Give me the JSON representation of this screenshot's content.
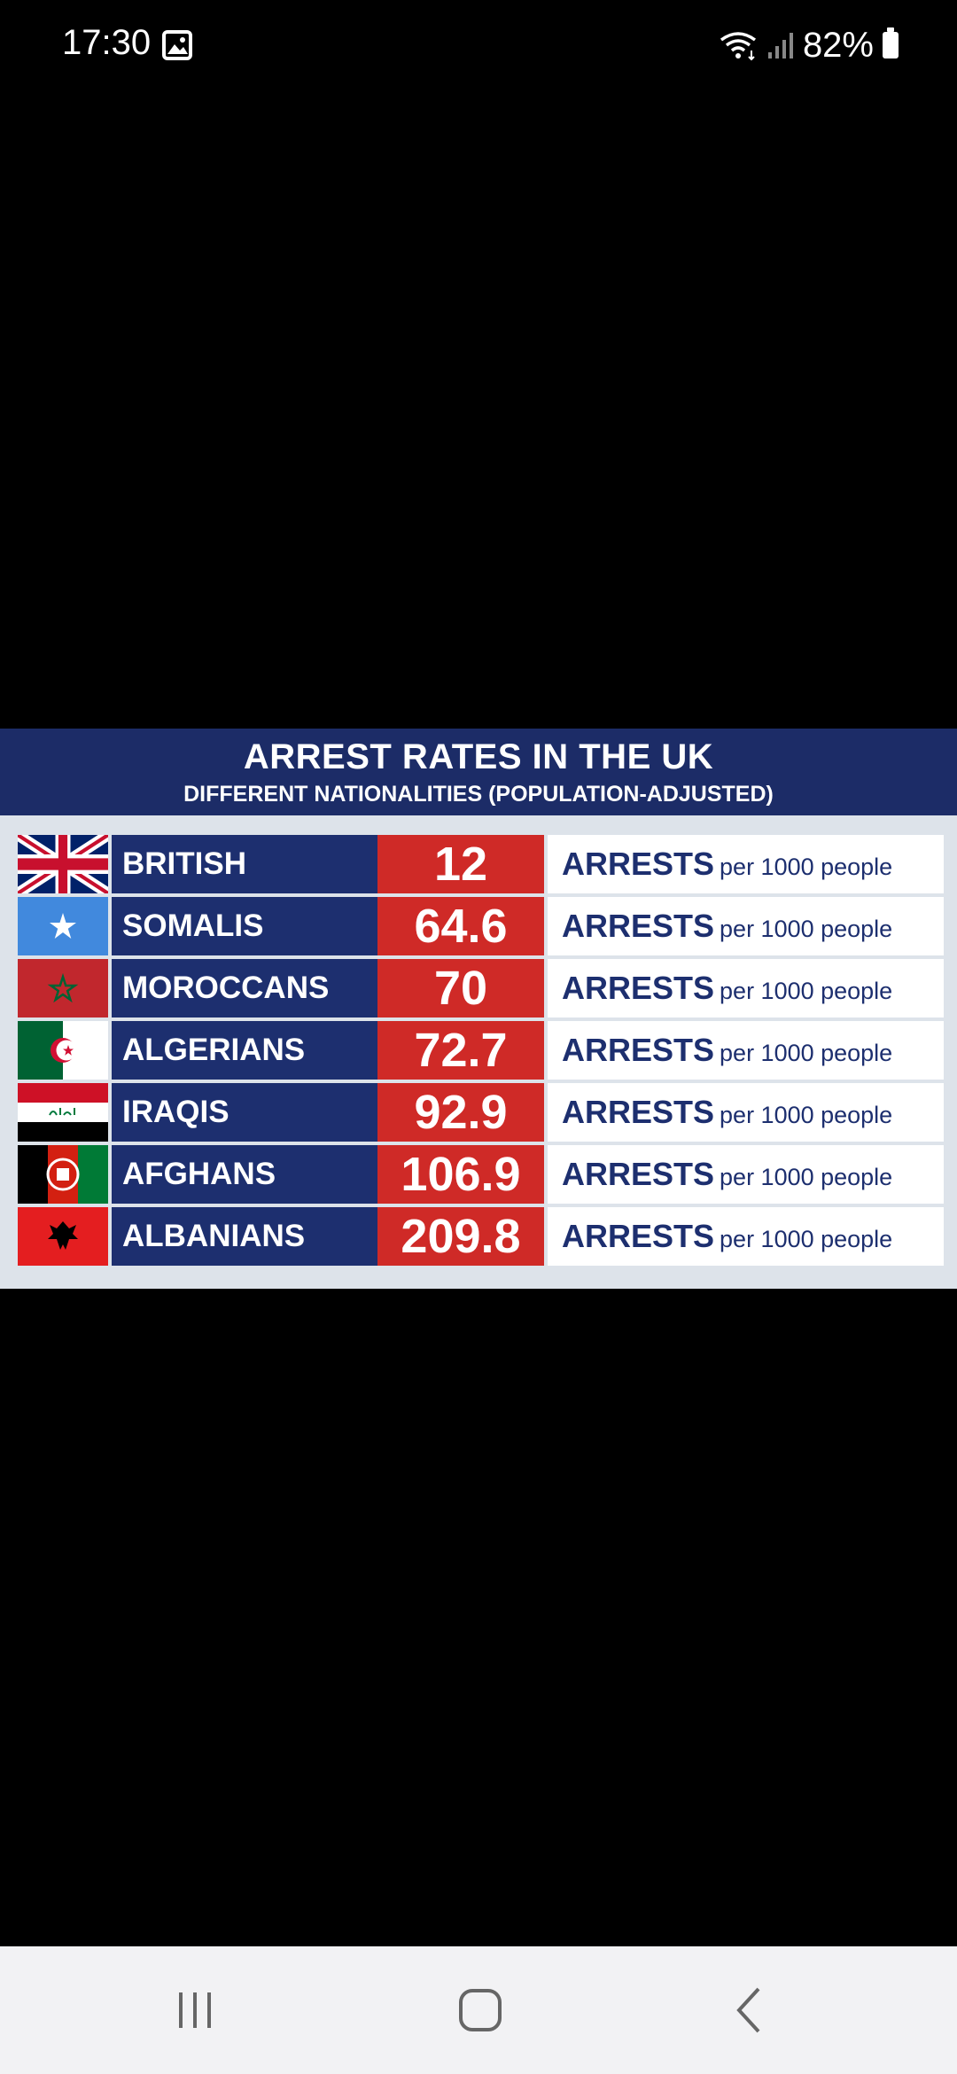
{
  "status_bar": {
    "time": "17:30",
    "battery": "82%",
    "icons": [
      "gallery-icon",
      "wifi-icon",
      "signal-icon",
      "battery-icon"
    ]
  },
  "infographic": {
    "title": "ARREST RATES IN THE UK",
    "subtitle": "DIFFERENT NATIONALITIES (POPULATION-ADJUSTED)",
    "unit_main": "ARRESTS",
    "unit_sub": "per 1000 people",
    "rows": [
      {
        "nationality": "BRITISH",
        "rate": "12",
        "flag": "uk-flag"
      },
      {
        "nationality": "SOMALIS",
        "rate": "64.6",
        "flag": "somalia-flag"
      },
      {
        "nationality": "MOROCCANS",
        "rate": "70",
        "flag": "morocco-flag"
      },
      {
        "nationality": "ALGERIANS",
        "rate": "72.7",
        "flag": "algeria-flag"
      },
      {
        "nationality": "IRAQIS",
        "rate": "92.9",
        "flag": "iraq-flag"
      },
      {
        "nationality": "AFGHANS",
        "rate": "106.9",
        "flag": "afghanistan-flag"
      },
      {
        "nationality": "ALBANIANS",
        "rate": "209.8",
        "flag": "albania-flag"
      }
    ],
    "colors": {
      "navy": "#1d2f6f",
      "red": "#cf2a27",
      "header": "#1c2c67"
    }
  },
  "navigation": {
    "buttons": [
      "recent-apps-icon",
      "home-icon",
      "back-icon"
    ]
  }
}
